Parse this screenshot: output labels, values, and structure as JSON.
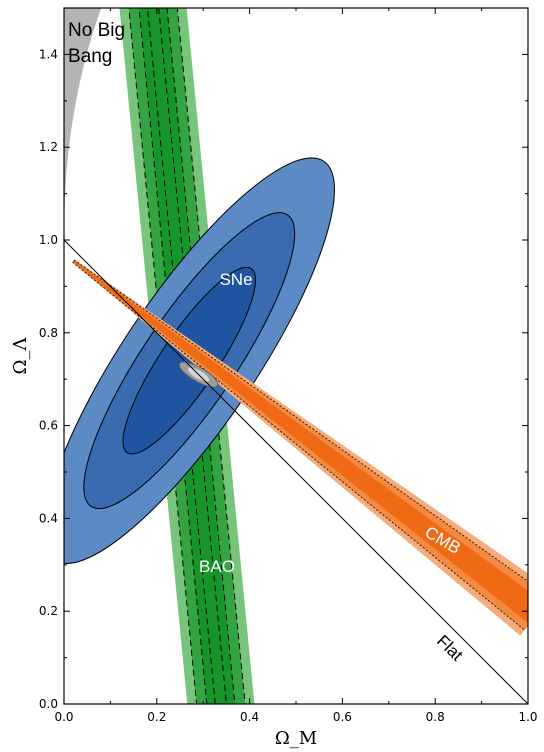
{
  "chart_data": {
    "type": "contour",
    "xlabel": "Ω_M",
    "ylabel": "Ω_Λ",
    "xlim": [
      0.0,
      1.0
    ],
    "ylim": [
      0.0,
      1.5
    ],
    "grid": false,
    "x_ticks": [
      "0.0",
      "0.2",
      "0.4",
      "0.6",
      "0.8",
      "1.0"
    ],
    "y_ticks": [
      "0.0",
      "0.2",
      "0.4",
      "0.6",
      "0.8",
      "1.0",
      "1.2",
      "1.4"
    ],
    "regions": [
      {
        "name": "SNe",
        "color": "#3e6fae",
        "center": [
          0.27,
          0.74
        ],
        "levels": [
          1,
          2,
          3
        ]
      },
      {
        "name": "BAO",
        "color": "#21a032",
        "center_line": [
          [
            0.19,
            1.5
          ],
          [
            0.34,
            0.0
          ]
        ],
        "levels": [
          1,
          2,
          3
        ]
      },
      {
        "name": "CMB",
        "color": "#f36f1c",
        "center_line": [
          [
            0.02,
            0.95
          ],
          [
            1.0,
            0.2
          ]
        ],
        "levels": [
          1,
          2,
          3
        ]
      },
      {
        "name": "Joint",
        "color": "#9a9a9a",
        "center": [
          0.29,
          0.71
        ]
      }
    ],
    "flat_line": [
      [
        0.0,
        1.0
      ],
      [
        1.0,
        0.0
      ]
    ],
    "annotations": {
      "sne": "SNe",
      "bao": "BAO",
      "cmb": "CMB",
      "flat": "Flat",
      "no_big_bang_1": "No Big",
      "no_big_bang_2": "Bang"
    },
    "colors": {
      "sne_outer": "#5b8ac4",
      "sne_mid": "#3a6ab0",
      "sne_inner": "#1f55a0",
      "bao_outer": "#77c57a",
      "bao_mid": "#34a443",
      "bao_inner": "#16962a",
      "cmb_outer": "#f6ac7a",
      "cmb_mid": "#f38a3f",
      "cmb_inner": "#f06a16",
      "no_big_bang": "#b4b4b4",
      "joint": "#9c9c9c"
    }
  }
}
